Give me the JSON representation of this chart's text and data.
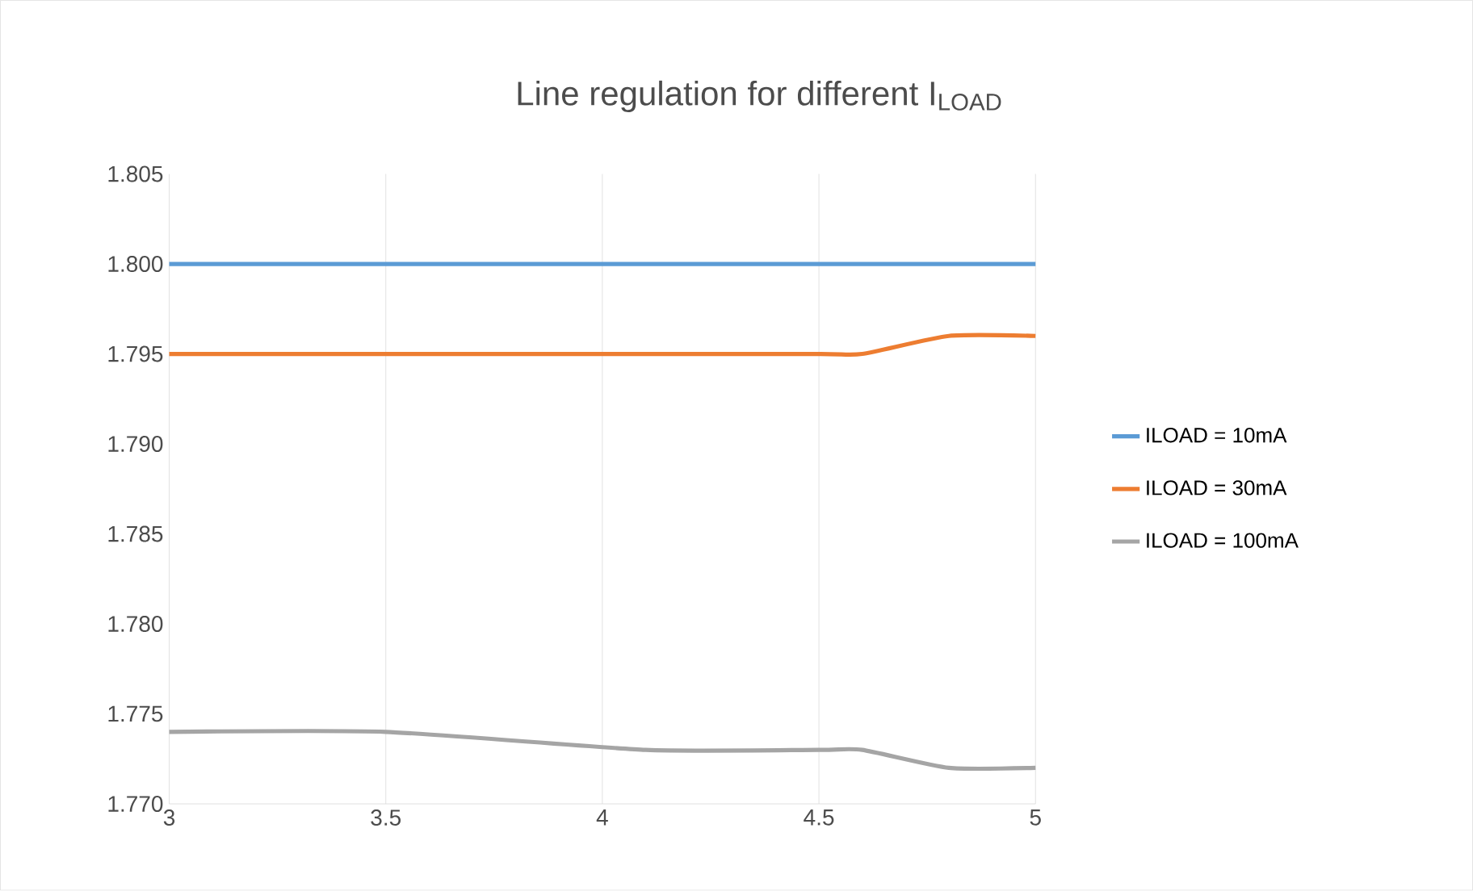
{
  "chart_data": {
    "type": "line",
    "title": "Line regulation for different I$_{LOAD}$",
    "xlim": [
      3,
      5
    ],
    "xticks": [
      3,
      3.5,
      4,
      4.5,
      5
    ],
    "ylim": [
      1.77,
      1.805
    ],
    "yticks": [
      {
        "value": 1.77,
        "label": "1.770"
      },
      1.775,
      {
        "value": 1.78,
        "label": "1.780"
      },
      1.785,
      {
        "value": 1.79,
        "label": "1.790"
      },
      1.795,
      {
        "value": 1.8,
        "label": "1.800"
      },
      1.805
    ],
    "grid": "x",
    "legend": "right",
    "marker": "none",
    "series": [
      {
        "name": "ILOAD = 10mA",
        "color": "#5b9bd5",
        "x": [
          3,
          3.5,
          4,
          4.5,
          5
        ],
        "values": [
          1.8,
          1.8,
          1.8,
          1.8,
          1.8
        ]
      },
      {
        "name": "ILOAD = 30mA",
        "color": "#ed7d31",
        "x": [
          3,
          3.5,
          4,
          4.5,
          4.6,
          4.8,
          5
        ],
        "values": [
          1.795,
          1.795,
          1.795,
          1.795,
          1.795,
          1.796,
          1.796
        ]
      },
      {
        "name": "ILOAD = 100mA",
        "color": "#a5a5a5",
        "x": [
          3,
          3.5,
          4.1,
          4.5,
          4.6,
          4.8,
          5
        ],
        "values": [
          1.774,
          1.774,
          1.773,
          1.773,
          1.773,
          1.772,
          1.772
        ]
      }
    ]
  }
}
